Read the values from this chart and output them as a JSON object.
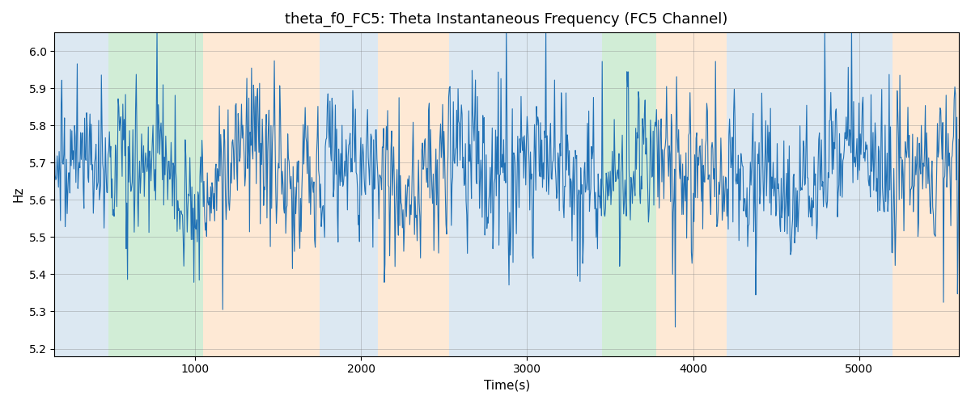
{
  "title": "theta_f0_FC5: Theta Instantaneous Frequency (FC5 Channel)",
  "xlabel": "Time(s)",
  "ylabel": "Hz",
  "ylim": [
    5.18,
    6.05
  ],
  "xlim": [
    155,
    5600
  ],
  "line_color": "#2171b5",
  "line_width": 0.8,
  "colored_bands": [
    {
      "xmin": 155,
      "xmax": 480,
      "color": "#b3cde3",
      "alpha": 0.45
    },
    {
      "xmin": 480,
      "xmax": 1050,
      "color": "#99d8a4",
      "alpha": 0.45
    },
    {
      "xmin": 1050,
      "xmax": 1750,
      "color": "#fdd0a2",
      "alpha": 0.45
    },
    {
      "xmin": 1750,
      "xmax": 2100,
      "color": "#b3cde3",
      "alpha": 0.45
    },
    {
      "xmin": 2100,
      "xmax": 2530,
      "color": "#fdd0a2",
      "alpha": 0.45
    },
    {
      "xmin": 2530,
      "xmax": 2780,
      "color": "#b3cde3",
      "alpha": 0.45
    },
    {
      "xmin": 2780,
      "xmax": 3100,
      "color": "#b3cde3",
      "alpha": 0.45
    },
    {
      "xmin": 3100,
      "xmax": 3450,
      "color": "#b3cde3",
      "alpha": 0.45
    },
    {
      "xmin": 3450,
      "xmax": 3780,
      "color": "#99d8a4",
      "alpha": 0.45
    },
    {
      "xmin": 3780,
      "xmax": 4200,
      "color": "#fdd0a2",
      "alpha": 0.45
    },
    {
      "xmin": 4200,
      "xmax": 4500,
      "color": "#b3cde3",
      "alpha": 0.45
    },
    {
      "xmin": 4500,
      "xmax": 4780,
      "color": "#b3cde3",
      "alpha": 0.45
    },
    {
      "xmin": 4780,
      "xmax": 5200,
      "color": "#b3cde3",
      "alpha": 0.45
    },
    {
      "xmin": 5200,
      "xmax": 5600,
      "color": "#fdd0a2",
      "alpha": 0.45
    }
  ],
  "seed": 137,
  "title_fontsize": 13,
  "xticks": [
    1000,
    2000,
    3000,
    4000,
    5000
  ],
  "yticks": [
    5.2,
    5.3,
    5.4,
    5.5,
    5.6,
    5.7,
    5.8,
    5.9,
    6.0
  ]
}
